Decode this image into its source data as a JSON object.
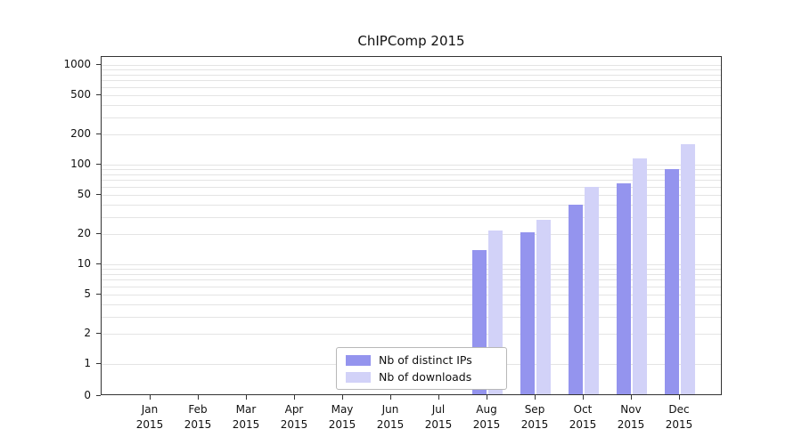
{
  "chart_data": {
    "type": "bar",
    "title": "ChIPComp 2015",
    "categories": [
      "Jan",
      "Feb",
      "Mar",
      "Apr",
      "May",
      "Jun",
      "Jul",
      "Aug",
      "Sep",
      "Oct",
      "Nov",
      "Dec"
    ],
    "category_year": "2015",
    "series": [
      {
        "name": "Nb of distinct IPs",
        "color": "#9494ee",
        "values": [
          0,
          0,
          0,
          0,
          0,
          0,
          0,
          14,
          21,
          40,
          65,
          90
        ]
      },
      {
        "name": "Nb of downloads",
        "color": "#d2d2f8",
        "values": [
          0,
          0,
          0,
          0,
          0,
          0,
          0,
          22,
          28,
          60,
          115,
          160
        ]
      }
    ],
    "yticks": [
      0,
      1,
      2,
      5,
      10,
      20,
      50,
      100,
      200,
      500,
      1000
    ],
    "yscale": "log",
    "ylim": [
      0,
      1000
    ],
    "grid": true,
    "legend_position": "inside-bottom-center"
  }
}
